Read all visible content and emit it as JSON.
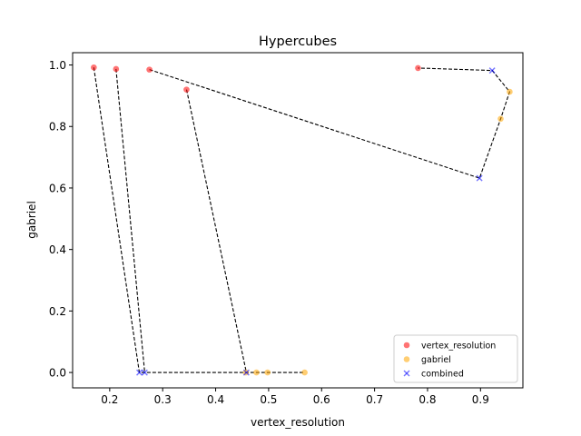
{
  "chart_data": {
    "type": "scatter",
    "title": "Hypercubes",
    "xlabel": "vertex_resolution",
    "ylabel": "gabriel",
    "xlim": [
      0.13,
      0.98
    ],
    "ylim": [
      -0.05,
      1.04
    ],
    "xticks": [
      0.2,
      0.3,
      0.4,
      0.5,
      0.6,
      0.7,
      0.8,
      0.9
    ],
    "yticks": [
      0.0,
      0.2,
      0.4,
      0.6,
      0.8,
      1.0
    ],
    "grid": false,
    "legend_position": "lower right",
    "series": [
      {
        "name": "vertex_resolution",
        "marker": "circle",
        "color": "#ff0000",
        "points": [
          [
            0.17,
            0.992
          ],
          [
            0.212,
            0.987
          ],
          [
            0.275,
            0.985
          ],
          [
            0.345,
            0.92
          ],
          [
            0.782,
            0.99
          ]
        ]
      },
      {
        "name": "gabriel",
        "marker": "circle",
        "color": "#ffa500",
        "points": [
          [
            0.568,
            0.0
          ],
          [
            0.498,
            0.0
          ],
          [
            0.477,
            0.0
          ],
          [
            0.457,
            0.0
          ],
          [
            0.955,
            0.913
          ],
          [
            0.938,
            0.825
          ]
        ]
      },
      {
        "name": "combined",
        "marker": "x",
        "color": "#0000ff",
        "points": [
          [
            0.256,
            0.0
          ],
          [
            0.266,
            0.0
          ],
          [
            0.458,
            0.0
          ],
          [
            0.898,
            0.632
          ],
          [
            0.922,
            0.982
          ]
        ]
      }
    ],
    "paths": [
      [
        [
          0.17,
          0.992
        ],
        [
          0.256,
          0.0
        ],
        [
          0.266,
          0.0
        ],
        [
          0.458,
          0.0
        ],
        [
          0.477,
          0.0
        ],
        [
          0.498,
          0.0
        ],
        [
          0.568,
          0.0
        ]
      ],
      [
        [
          0.212,
          0.987
        ],
        [
          0.266,
          0.0
        ]
      ],
      [
        [
          0.345,
          0.92
        ],
        [
          0.458,
          0.0
        ]
      ],
      [
        [
          0.275,
          0.985
        ],
        [
          0.898,
          0.632
        ],
        [
          0.938,
          0.825
        ],
        [
          0.955,
          0.913
        ],
        [
          0.922,
          0.982
        ],
        [
          0.782,
          0.99
        ]
      ]
    ]
  }
}
